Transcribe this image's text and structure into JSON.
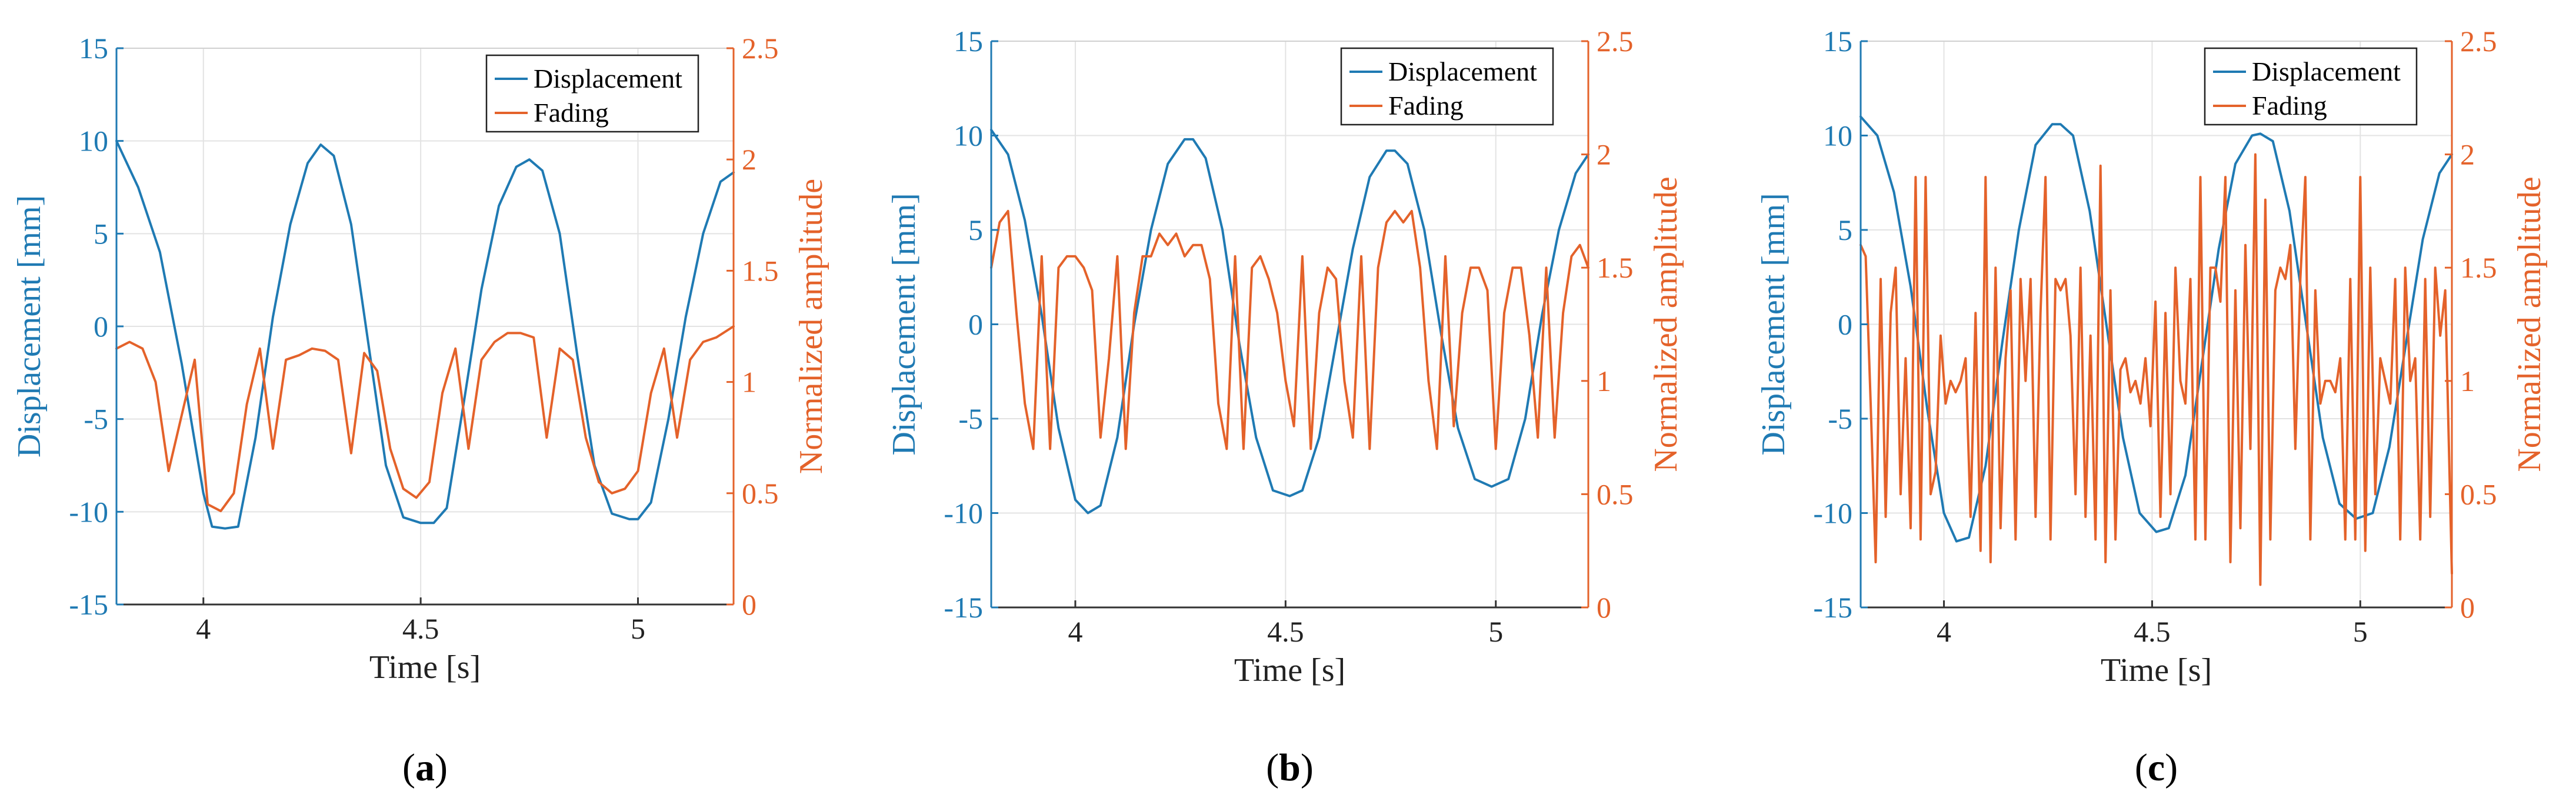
{
  "colors": {
    "displacement": "#1f7ab3",
    "fading": "#e4622a",
    "axis_left": "#1f7ab3",
    "axis_right": "#e4622a",
    "grid": "#e3e3e3"
  },
  "chart_data": [
    {
      "type": "line",
      "panel_label_prefix": "(",
      "panel_label_letter": "a",
      "panel_label_suffix": ")",
      "xlabel": "Time [s]",
      "ylabel": "Displacement [mm]",
      "y2label": "Normalized amplitude",
      "xlim": [
        3.8,
        5.22
      ],
      "ylim": [
        -15,
        15
      ],
      "y2lim": [
        0,
        2.5
      ],
      "xticks": [
        4,
        4.5,
        5
      ],
      "yticks": [
        -15,
        -10,
        -5,
        0,
        5,
        10,
        15
      ],
      "y2ticks": [
        0,
        0.5,
        1,
        1.5,
        2,
        2.5
      ],
      "legend": [
        "Displacement",
        "Fading"
      ],
      "legend_location": "top-right",
      "grid": true,
      "series": [
        {
          "name": "Displacement",
          "axis": "left",
          "x": [
            3.8,
            3.85,
            3.9,
            3.95,
            4.0,
            4.02,
            4.05,
            4.08,
            4.12,
            4.16,
            4.2,
            4.24,
            4.27,
            4.3,
            4.34,
            4.38,
            4.42,
            4.46,
            4.5,
            4.53,
            4.56,
            4.6,
            4.64,
            4.68,
            4.72,
            4.75,
            4.78,
            4.82,
            4.86,
            4.9,
            4.94,
            4.98,
            5.0,
            5.03,
            5.07,
            5.11,
            5.15,
            5.19,
            5.22
          ],
          "values": [
            10.0,
            7.5,
            4.0,
            -2.0,
            -9.0,
            -10.8,
            -10.9,
            -10.8,
            -6.0,
            0.5,
            5.5,
            8.8,
            9.8,
            9.2,
            5.5,
            -1.0,
            -7.5,
            -10.3,
            -10.6,
            -10.6,
            -9.8,
            -4.0,
            2.0,
            6.5,
            8.6,
            9.0,
            8.4,
            5.0,
            -1.5,
            -7.5,
            -10.1,
            -10.4,
            -10.4,
            -9.5,
            -5.0,
            0.5,
            5.0,
            7.8,
            8.3
          ]
        },
        {
          "name": "Fading",
          "axis": "right",
          "x": [
            3.8,
            3.83,
            3.86,
            3.89,
            3.92,
            3.95,
            3.98,
            4.01,
            4.04,
            4.07,
            4.1,
            4.13,
            4.16,
            4.19,
            4.22,
            4.25,
            4.28,
            4.31,
            4.34,
            4.37,
            4.4,
            4.43,
            4.46,
            4.49,
            4.52,
            4.55,
            4.58,
            4.61,
            4.64,
            4.67,
            4.7,
            4.73,
            4.76,
            4.79,
            4.82,
            4.85,
            4.88,
            4.91,
            4.94,
            4.97,
            5.0,
            5.03,
            5.06,
            5.09,
            5.12,
            5.15,
            5.18,
            5.22
          ],
          "values": [
            1.15,
            1.18,
            1.15,
            1.0,
            0.6,
            0.85,
            1.1,
            0.45,
            0.42,
            0.5,
            0.9,
            1.15,
            0.7,
            1.1,
            1.12,
            1.15,
            1.14,
            1.1,
            0.68,
            1.13,
            1.05,
            0.7,
            0.52,
            0.48,
            0.55,
            0.95,
            1.15,
            0.7,
            1.1,
            1.18,
            1.22,
            1.22,
            1.2,
            0.75,
            1.15,
            1.1,
            0.75,
            0.55,
            0.5,
            0.52,
            0.6,
            0.95,
            1.15,
            0.75,
            1.1,
            1.18,
            1.2,
            1.25
          ]
        }
      ]
    },
    {
      "type": "line",
      "panel_label_prefix": "(",
      "panel_label_letter": "b",
      "panel_label_suffix": ")",
      "xlabel": "Time [s]",
      "ylabel": "Displacement [mm]",
      "y2label": "Normalized amplitude",
      "xlim": [
        3.8,
        5.22
      ],
      "ylim": [
        -15,
        15
      ],
      "y2lim": [
        0,
        2.5
      ],
      "xticks": [
        4,
        4.5,
        5
      ],
      "yticks": [
        -15,
        -10,
        -5,
        0,
        5,
        10,
        15
      ],
      "y2ticks": [
        0,
        0.5,
        1,
        1.5,
        2,
        2.5
      ],
      "legend": [
        "Displacement",
        "Fading"
      ],
      "legend_location": "top-right",
      "grid": true,
      "series": [
        {
          "name": "Displacement",
          "axis": "left",
          "x": [
            3.8,
            3.84,
            3.88,
            3.92,
            3.96,
            4.0,
            4.03,
            4.06,
            4.1,
            4.14,
            4.18,
            4.22,
            4.26,
            4.28,
            4.31,
            4.35,
            4.39,
            4.43,
            4.47,
            4.51,
            4.54,
            4.58,
            4.62,
            4.66,
            4.7,
            4.74,
            4.76,
            4.79,
            4.83,
            4.87,
            4.91,
            4.95,
            4.99,
            5.03,
            5.07,
            5.11,
            5.15,
            5.19,
            5.22
          ],
          "values": [
            10.3,
            9.0,
            5.5,
            0.5,
            -5.5,
            -9.3,
            -10.0,
            -9.6,
            -6.0,
            0.0,
            5.0,
            8.5,
            9.8,
            9.8,
            8.8,
            5.0,
            -1.0,
            -6.0,
            -8.8,
            -9.1,
            -8.8,
            -6.0,
            -1.0,
            4.0,
            7.8,
            9.2,
            9.2,
            8.5,
            5.0,
            -0.5,
            -5.5,
            -8.2,
            -8.6,
            -8.2,
            -5.0,
            0.5,
            5.0,
            8.0,
            9.0
          ]
        },
        {
          "name": "Fading",
          "axis": "right",
          "x": [
            3.8,
            3.82,
            3.84,
            3.86,
            3.88,
            3.9,
            3.92,
            3.94,
            3.96,
            3.98,
            4.0,
            4.02,
            4.04,
            4.06,
            4.08,
            4.1,
            4.12,
            4.14,
            4.16,
            4.18,
            4.2,
            4.22,
            4.24,
            4.26,
            4.28,
            4.3,
            4.32,
            4.34,
            4.36,
            4.38,
            4.4,
            4.42,
            4.44,
            4.46,
            4.48,
            4.5,
            4.52,
            4.54,
            4.56,
            4.58,
            4.6,
            4.62,
            4.64,
            4.66,
            4.68,
            4.7,
            4.72,
            4.74,
            4.76,
            4.78,
            4.8,
            4.82,
            4.84,
            4.86,
            4.88,
            4.9,
            4.92,
            4.94,
            4.96,
            4.98,
            5.0,
            5.02,
            5.04,
            5.06,
            5.08,
            5.1,
            5.12,
            5.14,
            5.16,
            5.18,
            5.2,
            5.22
          ],
          "values": [
            1.5,
            1.7,
            1.75,
            1.3,
            0.9,
            0.7,
            1.55,
            0.7,
            1.5,
            1.55,
            1.55,
            1.5,
            1.4,
            0.75,
            1.1,
            1.55,
            0.7,
            1.3,
            1.55,
            1.55,
            1.65,
            1.6,
            1.65,
            1.55,
            1.6,
            1.6,
            1.45,
            0.9,
            0.7,
            1.55,
            0.7,
            1.5,
            1.55,
            1.45,
            1.3,
            1.0,
            0.8,
            1.55,
            0.7,
            1.3,
            1.5,
            1.45,
            1.0,
            0.75,
            1.55,
            0.7,
            1.5,
            1.7,
            1.75,
            1.7,
            1.75,
            1.5,
            1.0,
            0.7,
            1.55,
            0.8,
            1.3,
            1.5,
            1.5,
            1.4,
            0.7,
            1.3,
            1.5,
            1.5,
            1.2,
            0.75,
            1.5,
            0.75,
            1.3,
            1.55,
            1.6,
            1.5
          ]
        }
      ]
    },
    {
      "type": "line",
      "panel_label_prefix": "(",
      "panel_label_letter": "c",
      "panel_label_suffix": ")",
      "xlabel": "Time [s]",
      "ylabel": "Displacement [mm]",
      "y2label": "Normalized amplitude",
      "xlim": [
        3.8,
        5.22
      ],
      "ylim": [
        -15,
        15
      ],
      "y2lim": [
        0,
        2.5
      ],
      "xticks": [
        4,
        4.5,
        5
      ],
      "yticks": [
        -15,
        -10,
        -5,
        0,
        5,
        10,
        15
      ],
      "y2ticks": [
        0,
        0.5,
        1,
        1.5,
        2,
        2.5
      ],
      "legend": [
        "Displacement",
        "Fading"
      ],
      "legend_location": "top-right",
      "grid": true,
      "series": [
        {
          "name": "Displacement",
          "axis": "left",
          "x": [
            3.8,
            3.84,
            3.88,
            3.92,
            3.96,
            4.0,
            4.03,
            4.06,
            4.1,
            4.14,
            4.18,
            4.22,
            4.26,
            4.28,
            4.31,
            4.35,
            4.39,
            4.43,
            4.47,
            4.51,
            4.54,
            4.58,
            4.62,
            4.66,
            4.7,
            4.74,
            4.76,
            4.79,
            4.83,
            4.87,
            4.91,
            4.95,
            4.99,
            5.03,
            5.07,
            5.11,
            5.15,
            5.19,
            5.22
          ],
          "values": [
            11.0,
            10.0,
            7.0,
            2.0,
            -4.5,
            -10.0,
            -11.5,
            -11.3,
            -7.5,
            -1.0,
            5.0,
            9.5,
            10.6,
            10.6,
            10.0,
            6.0,
            0.0,
            -6.0,
            -10.0,
            -11.0,
            -10.8,
            -8.0,
            -2.0,
            4.0,
            8.5,
            10.0,
            10.1,
            9.7,
            6.0,
            0.0,
            -6.0,
            -9.5,
            -10.3,
            -10.0,
            -6.5,
            -1.0,
            4.5,
            8.0,
            9.0
          ]
        },
        {
          "name": "Fading",
          "axis": "right",
          "x": [
            3.8,
            3.812,
            3.824,
            3.836,
            3.848,
            3.86,
            3.872,
            3.884,
            3.896,
            3.908,
            3.92,
            3.932,
            3.944,
            3.956,
            3.968,
            3.98,
            3.992,
            4.004,
            4.016,
            4.028,
            4.04,
            4.052,
            4.064,
            4.076,
            4.088,
            4.1,
            4.112,
            4.124,
            4.136,
            4.148,
            4.16,
            4.172,
            4.184,
            4.196,
            4.208,
            4.22,
            4.232,
            4.244,
            4.256,
            4.268,
            4.28,
            4.292,
            4.304,
            4.316,
            4.328,
            4.34,
            4.352,
            4.364,
            4.376,
            4.388,
            4.4,
            4.412,
            4.424,
            4.436,
            4.448,
            4.46,
            4.472,
            4.484,
            4.496,
            4.508,
            4.52,
            4.532,
            4.544,
            4.556,
            4.568,
            4.58,
            4.592,
            4.604,
            4.616,
            4.628,
            4.64,
            4.652,
            4.664,
            4.676,
            4.688,
            4.7,
            4.712,
            4.724,
            4.736,
            4.748,
            4.76,
            4.772,
            4.784,
            4.796,
            4.808,
            4.82,
            4.832,
            4.844,
            4.856,
            4.868,
            4.88,
            4.892,
            4.904,
            4.916,
            4.928,
            4.94,
            4.952,
            4.964,
            4.976,
            4.988,
            5.0,
            5.012,
            5.024,
            5.036,
            5.048,
            5.06,
            5.072,
            5.084,
            5.096,
            5.108,
            5.12,
            5.132,
            5.144,
            5.156,
            5.168,
            5.18,
            5.192,
            5.204,
            5.22
          ],
          "values": [
            1.6,
            1.55,
            0.9,
            0.2,
            1.45,
            0.4,
            1.3,
            1.5,
            0.5,
            1.1,
            0.35,
            1.9,
            0.3,
            1.9,
            0.5,
            0.6,
            1.2,
            0.9,
            1.0,
            0.95,
            1.0,
            1.1,
            0.4,
            1.3,
            0.25,
            1.9,
            0.2,
            1.5,
            0.35,
            1.1,
            1.4,
            0.3,
            1.45,
            1.0,
            1.45,
            0.4,
            1.3,
            1.9,
            0.3,
            1.45,
            1.4,
            1.45,
            1.2,
            0.5,
            1.5,
            0.4,
            1.2,
            0.3,
            1.95,
            0.2,
            1.4,
            0.3,
            1.05,
            1.1,
            0.95,
            1.0,
            0.9,
            1.1,
            0.8,
            1.35,
            0.4,
            1.3,
            0.5,
            1.5,
            1.0,
            0.9,
            1.45,
            0.3,
            1.9,
            0.3,
            1.5,
            1.5,
            1.35,
            1.9,
            0.2,
            1.4,
            0.35,
            1.6,
            0.7,
            2.0,
            0.1,
            1.8,
            0.3,
            1.4,
            1.5,
            1.45,
            1.6,
            0.7,
            1.45,
            1.9,
            0.3,
            1.4,
            0.9,
            1.0,
            1.0,
            0.95,
            1.1,
            0.3,
            1.45,
            0.3,
            1.9,
            0.25,
            1.5,
            0.5,
            1.1,
            1.0,
            0.9,
            1.45,
            0.3,
            1.5,
            1.0,
            1.1,
            0.3,
            1.45,
            0.4,
            1.5,
            1.2,
            1.4,
            0.15
          ]
        }
      ]
    }
  ]
}
